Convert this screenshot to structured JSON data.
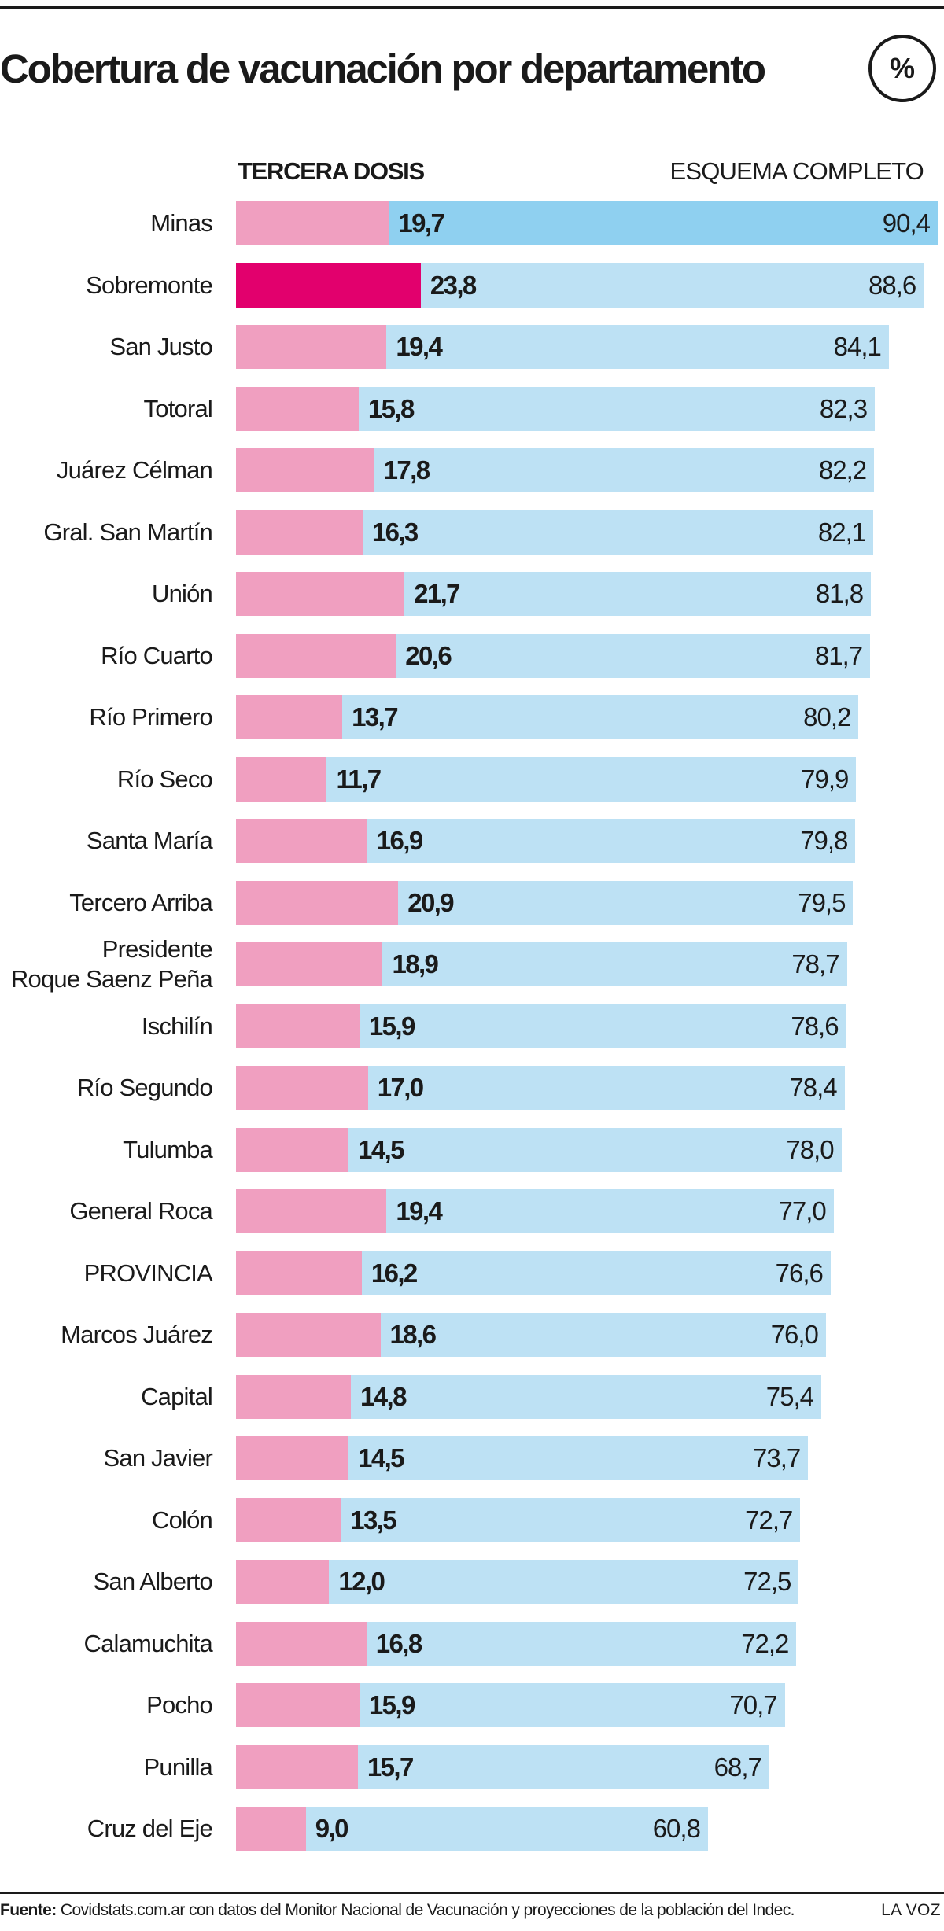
{
  "title": "Cobertura de vacunación por departamento",
  "unit_badge": "%",
  "footer": {
    "source_label": "Fuente:",
    "source_text": "Covidstats.com.ar con datos del Monitor Nacional de Vacunación y proyecciones de la población del Indec.",
    "brand": "LA VOZ"
  },
  "chart_data": {
    "type": "bar",
    "orientation": "horizontal",
    "title": "Cobertura de vacunación por departamento",
    "unit": "%",
    "xlim": [
      0,
      90.4
    ],
    "grid": false,
    "highlight_colors": {
      "tercera_dosis": "#e2006d",
      "esquema_completo": "#8fd0f0"
    },
    "categories": [
      "Minas",
      "Sobremonte",
      "San Justo",
      "Totoral",
      "Juárez Célman",
      "Gral. San Martín",
      "Unión",
      "Río Cuarto",
      "Río Primero",
      "Río Seco",
      "Santa María",
      "Tercero Arriba",
      "Presidente Roque Saenz Peña",
      "Ischilín",
      "Río Segundo",
      "Tulumba",
      "General Roca",
      "PROVINCIA",
      "Marcos Juárez",
      "Capital",
      "San Javier",
      "Colón",
      "San Alberto",
      "Calamuchita",
      "Pocho",
      "Punilla",
      "Cruz del Eje"
    ],
    "category_lines": [
      [
        "Minas"
      ],
      [
        "Sobremonte"
      ],
      [
        "San Justo"
      ],
      [
        "Totoral"
      ],
      [
        "Juárez Célman"
      ],
      [
        "Gral. San Martín"
      ],
      [
        "Unión"
      ],
      [
        "Río Cuarto"
      ],
      [
        "Río Primero"
      ],
      [
        "Río Seco"
      ],
      [
        "Santa María"
      ],
      [
        "Tercero Arriba"
      ],
      [
        "Presidente",
        "Roque Saenz Peña"
      ],
      [
        "Ischilín"
      ],
      [
        "Río Segundo"
      ],
      [
        "Tulumba"
      ],
      [
        "General Roca"
      ],
      [
        "PROVINCIA"
      ],
      [
        "Marcos Juárez"
      ],
      [
        "Capital"
      ],
      [
        "San Javier"
      ],
      [
        "Colón"
      ],
      [
        "San Alberto"
      ],
      [
        "Calamuchita"
      ],
      [
        "Pocho"
      ],
      [
        "Punilla"
      ],
      [
        "Cruz del Eje"
      ]
    ],
    "series": [
      {
        "name": "TERCERA DOSIS",
        "color": "#f09fc0",
        "values": [
          19.7,
          23.8,
          19.4,
          15.8,
          17.8,
          16.3,
          21.7,
          20.6,
          13.7,
          11.7,
          16.9,
          20.9,
          18.9,
          15.9,
          17.0,
          14.5,
          19.4,
          16.2,
          18.6,
          14.8,
          14.5,
          13.5,
          12.0,
          16.8,
          15.9,
          15.7,
          9.0
        ],
        "labels": [
          "19,7",
          "23,8",
          "19,4",
          "15,8",
          "17,8",
          "16,3",
          "21,7",
          "20,6",
          "13,7",
          "11,7",
          "16,9",
          "20,9",
          "18,9",
          "15,9",
          "17,0",
          "14,5",
          "19,4",
          "16,2",
          "18,6",
          "14,8",
          "14,5",
          "13,5",
          "12,0",
          "16,8",
          "15,9",
          "15,7",
          "9,0"
        ]
      },
      {
        "name": "ESQUEMA COMPLETO",
        "color": "#bde1f4",
        "values": [
          90.4,
          88.6,
          84.1,
          82.3,
          82.2,
          82.1,
          81.8,
          81.7,
          80.2,
          79.9,
          79.8,
          79.5,
          78.7,
          78.6,
          78.4,
          78.0,
          77.0,
          76.6,
          76.0,
          75.4,
          73.7,
          72.7,
          72.5,
          72.2,
          70.7,
          68.7,
          60.8
        ],
        "labels": [
          "90,4",
          "88,6",
          "84,1",
          "82,3",
          "82,2",
          "82,1",
          "81,8",
          "81,7",
          "80,2",
          "79,9",
          "79,8",
          "79,5",
          "78,7",
          "78,6",
          "78,4",
          "78,0",
          "77,0",
          "76,6",
          "76,0",
          "75,4",
          "73,7",
          "72,7",
          "72,5",
          "72,2",
          "70,7",
          "68,7",
          "60,8"
        ]
      }
    ]
  }
}
